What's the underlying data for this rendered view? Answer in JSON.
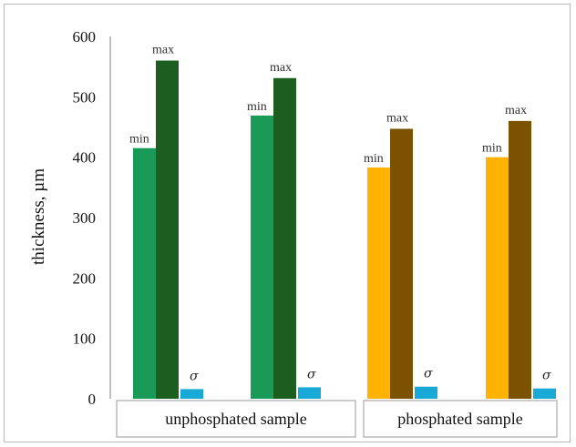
{
  "chart_data": {
    "type": "bar",
    "ylabel": "thickness, µm",
    "ylim": [
      0,
      600
    ],
    "yticks": [
      0,
      100,
      200,
      300,
      400,
      500,
      600
    ],
    "groups": [
      {
        "label": "unphosphated sample",
        "samples": [
          {
            "min": 415,
            "max": 560,
            "sigma": 16,
            "min_label": "min",
            "max_label": "max",
            "sigma_label": "σ",
            "colors": {
              "min": "#1a9a58",
              "max": "#1b5e20",
              "sigma": "#19a9d6"
            }
          },
          {
            "min": 469,
            "max": 531,
            "sigma": 19,
            "min_label": "min",
            "max_label": "max",
            "sigma_label": "σ",
            "colors": {
              "min": "#1a9a58",
              "max": "#1b5e20",
              "sigma": "#19a9d6"
            }
          }
        ]
      },
      {
        "label": "phosphated sample",
        "samples": [
          {
            "min": 383,
            "max": 447,
            "sigma": 20,
            "min_label": "min",
            "max_label": "max",
            "sigma_label": "σ",
            "colors": {
              "min": "#ffb300",
              "max": "#7a5200",
              "sigma": "#19a9d6"
            }
          },
          {
            "min": 400,
            "max": 460,
            "sigma": 17,
            "min_label": "min",
            "max_label": "max",
            "sigma_label": "σ",
            "colors": {
              "min": "#ffb300",
              "max": "#7a5200",
              "sigma": "#19a9d6"
            }
          }
        ]
      }
    ],
    "grid": false,
    "legend": "none"
  }
}
